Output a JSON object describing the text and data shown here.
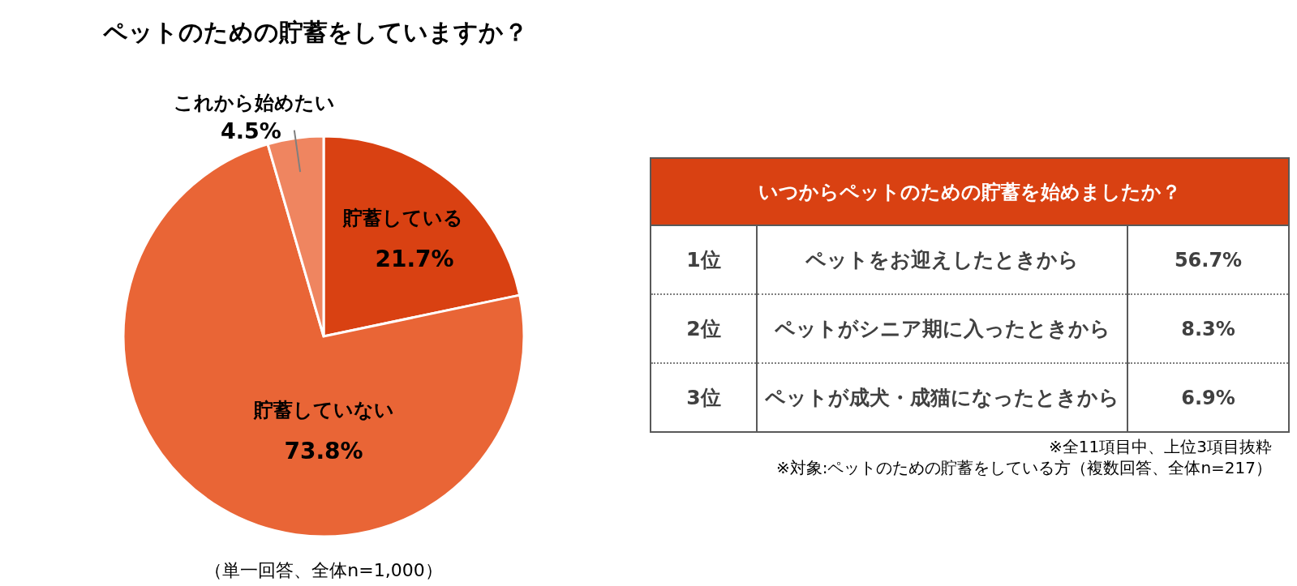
{
  "chart_data": [
    {
      "type": "pie",
      "title": "ペットのための貯蓄をしていますか？",
      "categories": [
        "貯蓄している",
        "貯蓄していない",
        "これから始めたい"
      ],
      "values": [
        21.7,
        73.8,
        4.5
      ],
      "colors": [
        "#d94112",
        "#e96536",
        "#ef8560"
      ],
      "value_labels": [
        "21.7%",
        "73.8%",
        "4.5%"
      ],
      "annotations": [
        "（単一回答、全体n=1,000）"
      ]
    },
    {
      "type": "other",
      "title": "いつからペットのための貯蓄を始めましたか？",
      "color": "#d94112",
      "y_categories": [
        "1位",
        "2位",
        "3位"
      ],
      "categories": [
        "ペットをお迎えしたときから",
        "ペットがシニア期に入ったときから",
        "ペットが成犬・成猫になったときから"
      ],
      "value_labels": [
        "56.7%",
        "8.3%",
        "6.9%"
      ],
      "annotations": [
        "※全11項目中、上位3項目抜粋",
        "※対象:ペットのための貯蓄をしている方（複数回答、全体n=217）"
      ]
    }
  ]
}
